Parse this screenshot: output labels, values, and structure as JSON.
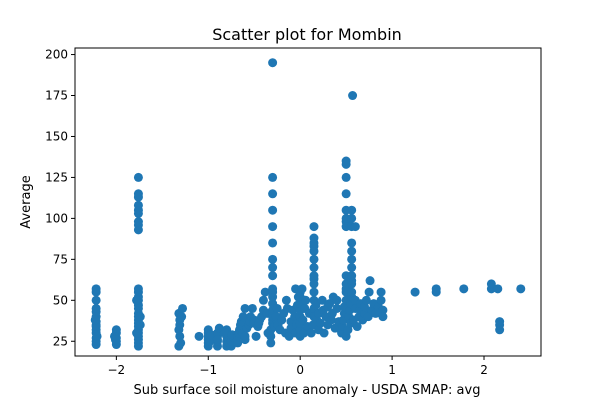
{
  "chart_data": {
    "type": "scatter",
    "title": "Scatter plot for Mombin",
    "xlabel": "Sub surface soil moisture anomaly - USDA SMAP: avg",
    "ylabel": "Average",
    "xlim": [
      -2.45,
      2.62
    ],
    "ylim": [
      16,
      204
    ],
    "xticks": [
      -2,
      -1,
      0,
      1,
      2
    ],
    "yticks": [
      25,
      50,
      75,
      100,
      125,
      150,
      175,
      200
    ],
    "grid": false,
    "marker_color": "#1f77b4",
    "points": [
      [
        -2.22,
        23
      ],
      [
        -2.22,
        25
      ],
      [
        -2.22,
        27
      ],
      [
        -2.22,
        30
      ],
      [
        -2.22,
        32
      ],
      [
        -2.22,
        35
      ],
      [
        -2.22,
        37
      ],
      [
        -2.22,
        40
      ],
      [
        -2.22,
        43
      ],
      [
        -2.22,
        45
      ],
      [
        -2.22,
        50
      ],
      [
        -2.22,
        55
      ],
      [
        -2.22,
        57
      ],
      [
        -2.22,
        34
      ],
      [
        -2.21,
        28
      ],
      [
        -2.23,
        38
      ],
      [
        -2.0,
        23
      ],
      [
        -2.0,
        25
      ],
      [
        -2.0,
        27
      ],
      [
        -2.0,
        30
      ],
      [
        -2.0,
        32
      ],
      [
        -2.02,
        28
      ],
      [
        -2.01,
        26
      ],
      [
        -1.76,
        22
      ],
      [
        -1.76,
        24
      ],
      [
        -1.76,
        26
      ],
      [
        -1.76,
        28
      ],
      [
        -1.76,
        30
      ],
      [
        -1.76,
        32
      ],
      [
        -1.76,
        34
      ],
      [
        -1.76,
        36
      ],
      [
        -1.76,
        38
      ],
      [
        -1.76,
        40
      ],
      [
        -1.76,
        42
      ],
      [
        -1.76,
        45
      ],
      [
        -1.76,
        47
      ],
      [
        -1.76,
        50
      ],
      [
        -1.76,
        52
      ],
      [
        -1.76,
        55
      ],
      [
        -1.76,
        57
      ],
      [
        -1.76,
        93
      ],
      [
        -1.76,
        96
      ],
      [
        -1.76,
        98
      ],
      [
        -1.76,
        103
      ],
      [
        -1.76,
        105
      ],
      [
        -1.76,
        108
      ],
      [
        -1.76,
        113
      ],
      [
        -1.76,
        115
      ],
      [
        -1.76,
        125
      ],
      [
        -1.78,
        30
      ],
      [
        -1.74,
        40
      ],
      [
        -1.78,
        50
      ],
      [
        -1.74,
        35
      ],
      [
        -1.32,
        22
      ],
      [
        -1.31,
        28
      ],
      [
        -1.32,
        32
      ],
      [
        -1.31,
        35
      ],
      [
        -1.31,
        38
      ],
      [
        -1.32,
        42
      ],
      [
        -1.28,
        45
      ],
      [
        -1.3,
        24
      ],
      [
        -1.29,
        40
      ],
      [
        -1.1,
        28
      ],
      [
        -1.0,
        22
      ],
      [
        -1.0,
        24
      ],
      [
        -1.0,
        26
      ],
      [
        -1.0,
        28
      ],
      [
        -1.0,
        30
      ],
      [
        -1.0,
        32
      ],
      [
        -0.98,
        25
      ],
      [
        -0.97,
        29
      ],
      [
        -0.9,
        22
      ],
      [
        -0.9,
        25
      ],
      [
        -0.9,
        28
      ],
      [
        -0.9,
        30
      ],
      [
        -0.88,
        33
      ],
      [
        -0.9,
        26
      ],
      [
        -0.8,
        22
      ],
      [
        -0.8,
        25
      ],
      [
        -0.8,
        28
      ],
      [
        -0.8,
        30
      ],
      [
        -0.8,
        32
      ],
      [
        -0.78,
        26
      ],
      [
        -0.82,
        30
      ],
      [
        -0.75,
        22
      ],
      [
        -0.75,
        25
      ],
      [
        -0.72,
        27
      ],
      [
        -0.74,
        29
      ],
      [
        -0.68,
        24
      ],
      [
        -0.68,
        28
      ],
      [
        -0.67,
        30
      ],
      [
        -0.66,
        32
      ],
      [
        -0.65,
        35
      ],
      [
        -0.64,
        37
      ],
      [
        -0.62,
        40
      ],
      [
        -0.6,
        45
      ],
      [
        -0.62,
        30
      ],
      [
        -0.6,
        26
      ],
      [
        -0.6,
        28
      ],
      [
        -0.58,
        33
      ],
      [
        -0.56,
        35
      ],
      [
        -0.55,
        37
      ],
      [
        -0.54,
        40
      ],
      [
        -0.52,
        45
      ],
      [
        -0.5,
        38
      ],
      [
        -0.5,
        36
      ],
      [
        -0.48,
        28
      ],
      [
        -0.46,
        34
      ],
      [
        -0.45,
        36
      ],
      [
        -0.44,
        38
      ],
      [
        -0.42,
        40
      ],
      [
        -0.4,
        44
      ],
      [
        -0.4,
        50
      ],
      [
        -0.38,
        55
      ],
      [
        -0.36,
        42
      ],
      [
        -0.35,
        30
      ],
      [
        -0.32,
        24
      ],
      [
        -0.32,
        28
      ],
      [
        -0.32,
        32
      ],
      [
        -0.3,
        36
      ],
      [
        -0.3,
        38
      ],
      [
        -0.3,
        40
      ],
      [
        -0.3,
        44
      ],
      [
        -0.3,
        48
      ],
      [
        -0.3,
        52
      ],
      [
        -0.3,
        55
      ],
      [
        -0.3,
        57
      ],
      [
        -0.3,
        65
      ],
      [
        -0.3,
        70
      ],
      [
        -0.3,
        75
      ],
      [
        -0.3,
        85
      ],
      [
        -0.3,
        95
      ],
      [
        -0.3,
        105
      ],
      [
        -0.3,
        115
      ],
      [
        -0.3,
        125
      ],
      [
        -0.3,
        195
      ],
      [
        -0.28,
        34
      ],
      [
        -0.26,
        40
      ],
      [
        -0.25,
        45
      ],
      [
        -0.24,
        35
      ],
      [
        -0.22,
        32
      ],
      [
        -0.2,
        38
      ],
      [
        -0.18,
        42
      ],
      [
        -0.16,
        30
      ],
      [
        -0.15,
        50
      ],
      [
        -0.14,
        45
      ],
      [
        -0.12,
        28
      ],
      [
        -0.1,
        33
      ],
      [
        -0.1,
        37
      ],
      [
        -0.08,
        44
      ],
      [
        -0.06,
        40
      ],
      [
        -0.05,
        30
      ],
      [
        -0.04,
        35
      ],
      [
        -0.02,
        52
      ],
      [
        -0.05,
        57
      ],
      [
        -0.03,
        47
      ],
      [
        0.0,
        28
      ],
      [
        0.0,
        32
      ],
      [
        0.0,
        36
      ],
      [
        0.0,
        40
      ],
      [
        0.0,
        44
      ],
      [
        0.0,
        48
      ],
      [
        0.0,
        52
      ],
      [
        0.0,
        55
      ],
      [
        0.02,
        57
      ],
      [
        0.03,
        38
      ],
      [
        0.04,
        30
      ],
      [
        0.05,
        45
      ],
      [
        0.06,
        50
      ],
      [
        0.08,
        34
      ],
      [
        0.1,
        42
      ],
      [
        0.12,
        30
      ],
      [
        0.14,
        35
      ],
      [
        0.15,
        40
      ],
      [
        0.15,
        45
      ],
      [
        0.15,
        50
      ],
      [
        0.15,
        55
      ],
      [
        0.15,
        60
      ],
      [
        0.15,
        63
      ],
      [
        0.15,
        65
      ],
      [
        0.15,
        70
      ],
      [
        0.15,
        75
      ],
      [
        0.15,
        80
      ],
      [
        0.15,
        83
      ],
      [
        0.15,
        85
      ],
      [
        0.15,
        88
      ],
      [
        0.15,
        95
      ],
      [
        0.17,
        47
      ],
      [
        0.18,
        38
      ],
      [
        0.2,
        32
      ],
      [
        0.2,
        42
      ],
      [
        0.22,
        36
      ],
      [
        0.24,
        50
      ],
      [
        0.25,
        44
      ],
      [
        0.26,
        30
      ],
      [
        0.28,
        40
      ],
      [
        0.3,
        46
      ],
      [
        0.3,
        35
      ],
      [
        0.32,
        48
      ],
      [
        0.34,
        38
      ],
      [
        0.35,
        42
      ],
      [
        0.36,
        52
      ],
      [
        0.38,
        33
      ],
      [
        0.4,
        45
      ],
      [
        0.4,
        50
      ],
      [
        0.42,
        37
      ],
      [
        0.45,
        30
      ],
      [
        0.46,
        34
      ],
      [
        0.47,
        38
      ],
      [
        0.48,
        42
      ],
      [
        0.48,
        46
      ],
      [
        0.5,
        50
      ],
      [
        0.5,
        28
      ],
      [
        0.5,
        55
      ],
      [
        0.5,
        57
      ],
      [
        0.5,
        60
      ],
      [
        0.5,
        65
      ],
      [
        0.5,
        95
      ],
      [
        0.5,
        98
      ],
      [
        0.5,
        100
      ],
      [
        0.5,
        105
      ],
      [
        0.5,
        115
      ],
      [
        0.5,
        125
      ],
      [
        0.5,
        133
      ],
      [
        0.5,
        135
      ],
      [
        0.52,
        32
      ],
      [
        0.53,
        40
      ],
      [
        0.54,
        44
      ],
      [
        0.55,
        36
      ],
      [
        0.55,
        48
      ],
      [
        0.56,
        52
      ],
      [
        0.56,
        55
      ],
      [
        0.56,
        60
      ],
      [
        0.56,
        62
      ],
      [
        0.56,
        65
      ],
      [
        0.56,
        70
      ],
      [
        0.56,
        75
      ],
      [
        0.56,
        80
      ],
      [
        0.56,
        85
      ],
      [
        0.56,
        95
      ],
      [
        0.56,
        100
      ],
      [
        0.56,
        105
      ],
      [
        0.57,
        175
      ],
      [
        0.58,
        38
      ],
      [
        0.6,
        45
      ],
      [
        0.6,
        95
      ],
      [
        0.6,
        50
      ],
      [
        0.62,
        34
      ],
      [
        0.64,
        40
      ],
      [
        0.65,
        44
      ],
      [
        0.66,
        48
      ],
      [
        0.68,
        38
      ],
      [
        0.7,
        42
      ],
      [
        0.7,
        46
      ],
      [
        0.72,
        50
      ],
      [
        0.74,
        40
      ],
      [
        0.75,
        55
      ],
      [
        0.76,
        62
      ],
      [
        0.78,
        44
      ],
      [
        0.8,
        48
      ],
      [
        0.82,
        42
      ],
      [
        0.85,
        46
      ],
      [
        0.88,
        55
      ],
      [
        0.9,
        44
      ],
      [
        0.9,
        40
      ],
      [
        0.88,
        50
      ],
      [
        1.25,
        55
      ],
      [
        1.48,
        55
      ],
      [
        1.48,
        57
      ],
      [
        1.78,
        57
      ],
      [
        2.08,
        57
      ],
      [
        2.08,
        60
      ],
      [
        2.15,
        57
      ],
      [
        2.17,
        32
      ],
      [
        2.17,
        35
      ],
      [
        2.17,
        37
      ],
      [
        2.4,
        57
      ]
    ]
  }
}
